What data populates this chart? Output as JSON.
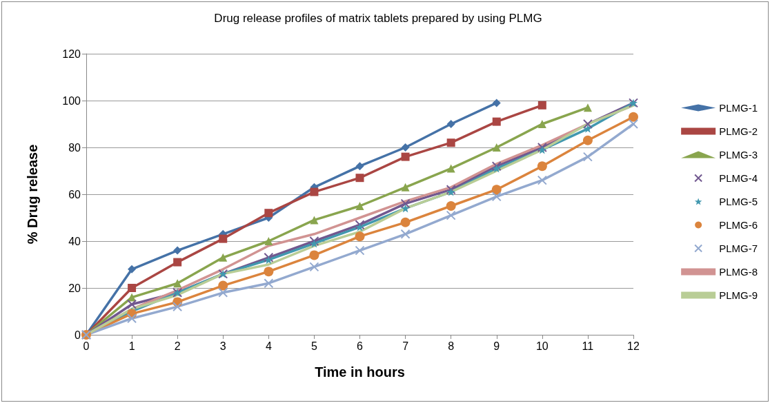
{
  "chart_data": {
    "type": "line",
    "title": "Drug release profiles of matrix tablets prepared by using PLMG",
    "xlabel": "Time in hours",
    "ylabel": "% Drug release",
    "x": [
      0,
      1,
      2,
      3,
      4,
      5,
      6,
      7,
      8,
      9,
      10,
      11,
      12
    ],
    "xlim": [
      0,
      12
    ],
    "xticks": [
      0,
      1,
      2,
      3,
      4,
      5,
      6,
      7,
      8,
      9,
      10,
      11,
      12
    ],
    "ylim": [
      0,
      120
    ],
    "yticks": [
      0,
      20,
      40,
      60,
      80,
      100,
      120
    ],
    "grid": "y",
    "legend": "right",
    "line_style": "solid",
    "series": [
      {
        "name": "PLMG-1",
        "color": "#4572a7",
        "marker": "diamond",
        "values": [
          0,
          28,
          36,
          43,
          50,
          63,
          72,
          80,
          90,
          99,
          null,
          null,
          null
        ]
      },
      {
        "name": "PLMG-2",
        "color": "#aa4643",
        "marker": "square",
        "values": [
          0,
          20,
          31,
          41,
          52,
          61,
          67,
          76,
          82,
          91,
          98,
          null,
          null
        ]
      },
      {
        "name": "PLMG-3",
        "color": "#89a54e",
        "marker": "triangle",
        "values": [
          0,
          16,
          22,
          33,
          40,
          49,
          55,
          63,
          71,
          80,
          90,
          97,
          null
        ]
      },
      {
        "name": "PLMG-4",
        "color": "#71588f",
        "marker": "cross",
        "values": [
          0,
          13,
          18,
          26,
          33,
          40,
          47,
          56,
          62,
          72,
          80,
          90,
          99
        ]
      },
      {
        "name": "PLMG-5",
        "color": "#4198af",
        "marker": "star",
        "values": [
          0,
          10,
          18,
          26,
          32,
          39,
          46,
          54,
          61,
          71,
          79,
          88,
          99
        ]
      },
      {
        "name": "PLMG-6",
        "color": "#db843d",
        "marker": "circle",
        "values": [
          0,
          9,
          14,
          21,
          27,
          34,
          42,
          48,
          55,
          62,
          72,
          83,
          93
        ]
      },
      {
        "name": "PLMG-7",
        "color": "#93a9cf",
        "marker": "cross",
        "values": [
          0,
          7,
          12,
          18,
          22,
          29,
          36,
          43,
          51,
          59,
          66,
          76,
          90
        ]
      },
      {
        "name": "PLMG-8",
        "color": "#d19392",
        "marker": "none",
        "values": [
          0,
          11,
          19,
          28,
          38,
          43,
          50,
          57,
          63,
          73,
          81,
          90,
          98
        ]
      },
      {
        "name": "PLMG-9",
        "color": "#b9cd96",
        "marker": "none",
        "values": [
          0,
          11,
          17,
          26,
          30,
          38,
          44,
          54,
          61,
          70,
          79,
          90,
          98
        ]
      }
    ]
  }
}
